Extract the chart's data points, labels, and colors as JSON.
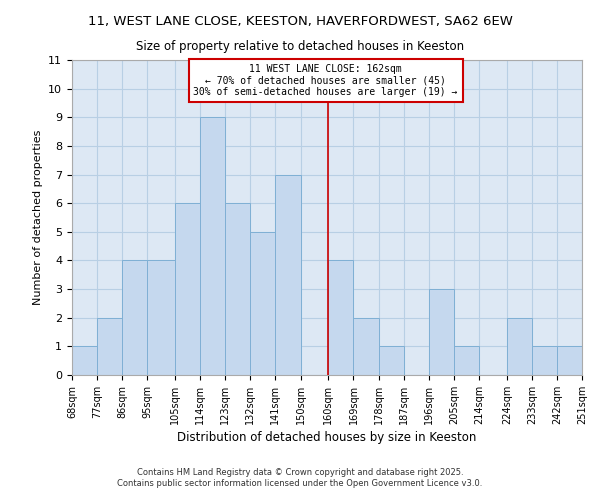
{
  "title": "11, WEST LANE CLOSE, KEESTON, HAVERFORDWEST, SA62 6EW",
  "subtitle": "Size of property relative to detached houses in Keeston",
  "xlabel": "Distribution of detached houses by size in Keeston",
  "ylabel": "Number of detached properties",
  "bar_color": "#c5d8ee",
  "bar_edge_color": "#7fafd4",
  "plot_bg_color": "#dde8f4",
  "fig_bg_color": "#ffffff",
  "grid_color": "#b8cfe4",
  "bins": [
    68,
    77,
    86,
    95,
    105,
    114,
    123,
    132,
    141,
    150,
    160,
    169,
    178,
    187,
    196,
    205,
    214,
    224,
    233,
    242,
    251
  ],
  "bin_labels": [
    "68sqm",
    "77sqm",
    "86sqm",
    "95sqm",
    "105sqm",
    "114sqm",
    "123sqm",
    "132sqm",
    "141sqm",
    "150sqm",
    "160sqm",
    "169sqm",
    "178sqm",
    "187sqm",
    "196sqm",
    "205sqm",
    "214sqm",
    "224sqm",
    "233sqm",
    "242sqm",
    "251sqm"
  ],
  "counts": [
    1,
    2,
    4,
    4,
    6,
    9,
    6,
    5,
    7,
    0,
    4,
    2,
    1,
    0,
    3,
    1,
    0,
    2,
    1,
    1
  ],
  "property_line_x": 160,
  "property_line_color": "#cc0000",
  "annotation_title": "11 WEST LANE CLOSE: 162sqm",
  "annotation_line1": "← 70% of detached houses are smaller (45)",
  "annotation_line2": "30% of semi-detached houses are larger (19) →",
  "annotation_box_color": "#ffffff",
  "annotation_box_edge_color": "#cc0000",
  "ylim": [
    0,
    11
  ],
  "yticks": [
    0,
    1,
    2,
    3,
    4,
    5,
    6,
    7,
    8,
    9,
    10,
    11
  ],
  "footnote1": "Contains HM Land Registry data © Crown copyright and database right 2025.",
  "footnote2": "Contains public sector information licensed under the Open Government Licence v3.0."
}
